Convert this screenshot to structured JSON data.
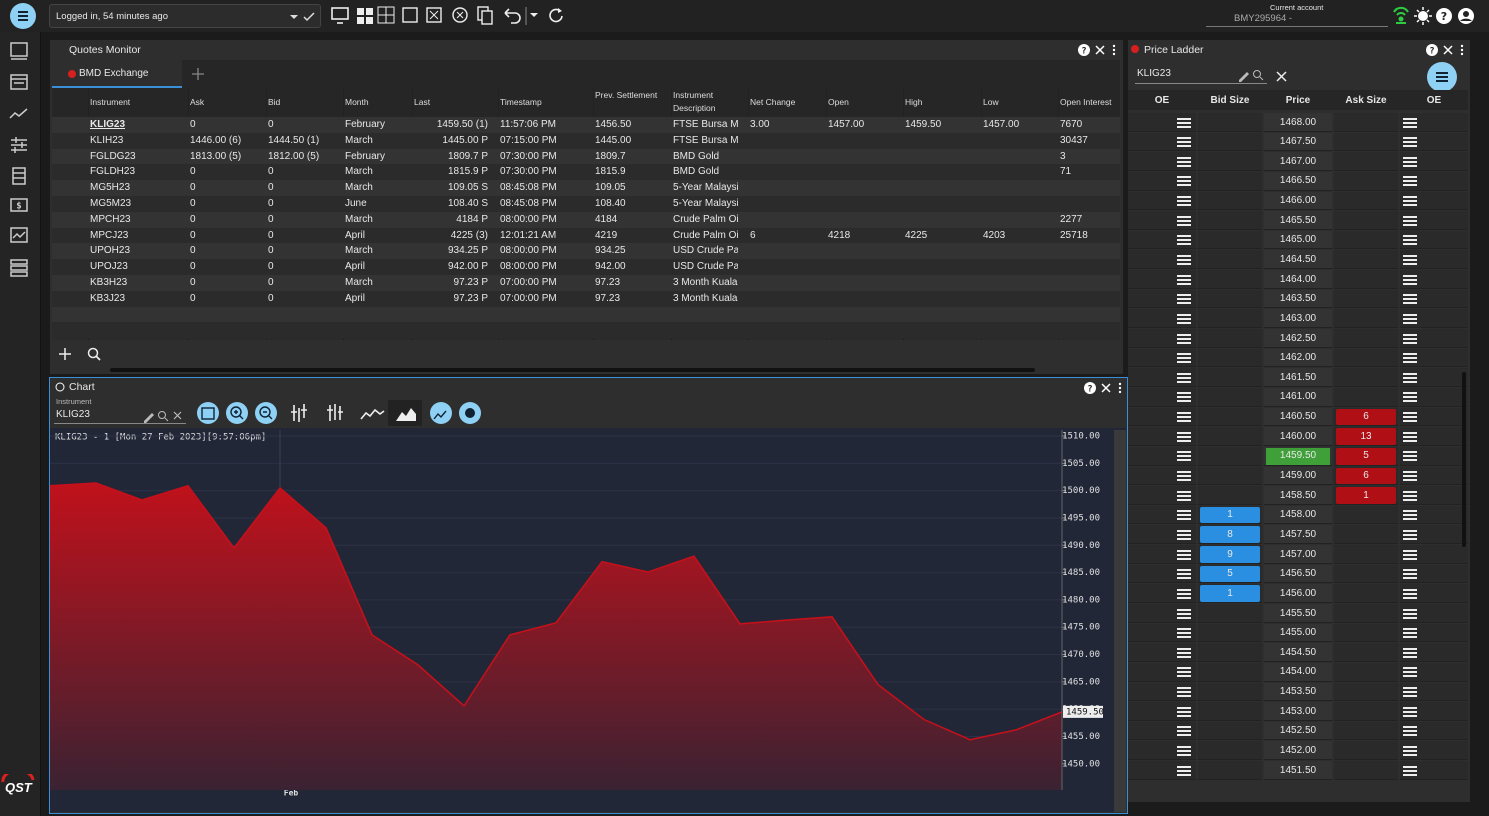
{
  "top_bar": {
    "login_status": "Logged in, 54 minutes ago",
    "account_label": "Current account",
    "account": "BMY295964 -"
  },
  "logo": "QST",
  "quotes_monitor": {
    "title": "Quotes Monitor",
    "tab": "BMD Exchange",
    "columns": [
      "Instrument",
      "Ask",
      "Bid",
      "Month",
      "Last",
      "Timestamp",
      "Prev. Settlement",
      "Instrument Description",
      "Net Change",
      "Open",
      "High",
      "Low",
      "Open Interest"
    ],
    "rows": [
      [
        "KLIG23",
        "0",
        "0",
        "February",
        "1459.50 (1)",
        "11:57:06 PM",
        "1456.50",
        "FTSE Bursa M…",
        "3.00",
        "1457.00",
        "1459.50",
        "1457.00",
        "7670"
      ],
      [
        "KLIH23",
        "1446.00 (6)",
        "1444.50 (1)",
        "March",
        "1445.00 P",
        "07:15:00 PM",
        "1445.00",
        "FTSE Bursa M…",
        null,
        null,
        null,
        null,
        "30437"
      ],
      [
        "FGLDG23",
        "1813.00 (5)",
        "1812.00 (5)",
        "February",
        "1809.7 P",
        "07:30:00 PM",
        "1809.7",
        "BMD Gold",
        null,
        null,
        null,
        null,
        "3"
      ],
      [
        "FGLDH23",
        "0",
        "0",
        "March",
        "1815.9 P",
        "07:30:00 PM",
        "1815.9",
        "BMD Gold",
        null,
        null,
        null,
        null,
        "71"
      ],
      [
        "MG5H23",
        "0",
        "0",
        "March",
        "109.05 S",
        "08:45:08 PM",
        "109.05",
        "5-Year Malaysi…",
        null,
        null,
        null,
        null,
        null
      ],
      [
        "MG5M23",
        "0",
        "0",
        "June",
        "108.40 S",
        "08:45:08 PM",
        "108.40",
        "5-Year Malaysi…",
        null,
        null,
        null,
        null,
        null
      ],
      [
        "MPCH23",
        "0",
        "0",
        "March",
        "4184 P",
        "08:00:00 PM",
        "4184",
        "Crude Palm Oil",
        null,
        null,
        null,
        null,
        "2277"
      ],
      [
        "MPCJ23",
        "0",
        "0",
        "April",
        "4225 (3)",
        "12:01:21 AM",
        "4219",
        "Crude Palm Oil",
        "6",
        "4218",
        "4225",
        "4203",
        "25718"
      ],
      [
        "UPOH23",
        "0",
        "0",
        "March",
        "934.25 P",
        "08:00:00 PM",
        "934.25",
        "USD Crude Pal…",
        null,
        null,
        null,
        null,
        null
      ],
      [
        "UPOJ23",
        "0",
        "0",
        "April",
        "942.00 P",
        "08:00:00 PM",
        "942.00",
        "USD Crude Pal…",
        null,
        null,
        null,
        null,
        null
      ],
      [
        "KB3H23",
        "0",
        "0",
        "March",
        "97.23 P",
        "07:00:00 PM",
        "97.23",
        "3 Month Kuala …",
        null,
        null,
        null,
        null,
        null
      ],
      [
        "KB3J23",
        "0",
        "0",
        "April",
        "97.23 P",
        "07:00:00 PM",
        "97.23",
        "3 Month Kuala …",
        null,
        null,
        null,
        null,
        null
      ]
    ]
  },
  "chart_panel": {
    "title": "Chart",
    "instrument_label": "Instrument",
    "instrument": "KLIG23"
  },
  "chart_data": {
    "type": "area",
    "annotation": "KLIG23 - 1 [Mon 27 Feb 2023][9:57:06pm]",
    "categories": [
      null,
      null,
      null,
      null,
      null,
      "Feb",
      null,
      null,
      null,
      null,
      null,
      null,
      null,
      null,
      null,
      null,
      null,
      null,
      null,
      null,
      null,
      null,
      null
    ],
    "values": [
      1500.9,
      1501.4,
      1498.3,
      1500.9,
      1489.5,
      1500.5,
      1493.2,
      1473.6,
      1468.1,
      1460.6,
      1473.6,
      1475.8,
      1487.0,
      1485.1,
      1488.0,
      1475.6,
      1476.3,
      1476.9,
      1464.5,
      1458.1,
      1454.4,
      1456.2,
      1459.5
    ],
    "last_value_label": "1459.50",
    "color": "#c8101a",
    "ylim": [
      1445.2,
      1511.1
    ],
    "yticks": [
      {
        "value": 1510,
        "label": "1510.00"
      },
      {
        "value": 1505,
        "label": "1505.00"
      },
      {
        "value": 1500,
        "label": "1500.00"
      },
      {
        "value": 1495,
        "label": "1495.00"
      },
      {
        "value": 1490,
        "label": "1490.00"
      },
      {
        "value": 1485,
        "label": "1485.00"
      },
      {
        "value": 1480,
        "label": "1480.00"
      },
      {
        "value": 1475,
        "label": "1475.00"
      },
      {
        "value": 1470,
        "label": "1470.00"
      },
      {
        "value": 1465,
        "label": "1465.00"
      },
      {
        "value": 1460,
        "label": "1460.00"
      },
      {
        "value": 1455,
        "label": "1455.00"
      },
      {
        "value": 1450,
        "label": "1450.00"
      }
    ],
    "grid": true
  },
  "price_ladder": {
    "title": "Price Ladder",
    "instrument": "KLIG23",
    "columns": [
      "OE",
      "Bid Size",
      "Price",
      "Ask Size",
      "OE"
    ],
    "rows": [
      [
        "1468.00",
        null,
        null
      ],
      [
        "1467.50",
        null,
        null
      ],
      [
        "1467.00",
        null,
        null
      ],
      [
        "1466.50",
        null,
        null
      ],
      [
        "1466.00",
        null,
        null
      ],
      [
        "1465.50",
        null,
        null
      ],
      [
        "1465.00",
        null,
        null
      ],
      [
        "1464.50",
        null,
        null
      ],
      [
        "1464.00",
        null,
        null
      ],
      [
        "1463.50",
        null,
        null
      ],
      [
        "1463.00",
        null,
        null
      ],
      [
        "1462.50",
        null,
        null
      ],
      [
        "1462.00",
        null,
        null
      ],
      [
        "1461.50",
        null,
        null
      ],
      [
        "1461.00",
        null,
        null
      ],
      [
        "1460.50",
        null,
        6
      ],
      [
        "1460.00",
        null,
        13
      ],
      [
        "1459.50",
        null,
        5
      ],
      [
        "1459.00",
        null,
        6
      ],
      [
        "1458.50",
        null,
        1
      ],
      [
        "1458.00",
        1,
        null
      ],
      [
        "1457.50",
        8,
        null
      ],
      [
        "1457.00",
        9,
        null
      ],
      [
        "1456.50",
        5,
        null
      ],
      [
        "1456.00",
        1,
        null
      ],
      [
        "1455.50",
        null,
        null
      ],
      [
        "1455.00",
        null,
        null
      ],
      [
        "1454.50",
        null,
        null
      ],
      [
        "1454.00",
        null,
        null
      ],
      [
        "1453.50",
        null,
        null
      ],
      [
        "1453.00",
        null,
        null
      ],
      [
        "1452.50",
        null,
        null
      ],
      [
        "1452.00",
        null,
        null
      ],
      [
        "1451.50",
        null,
        null
      ]
    ]
  }
}
